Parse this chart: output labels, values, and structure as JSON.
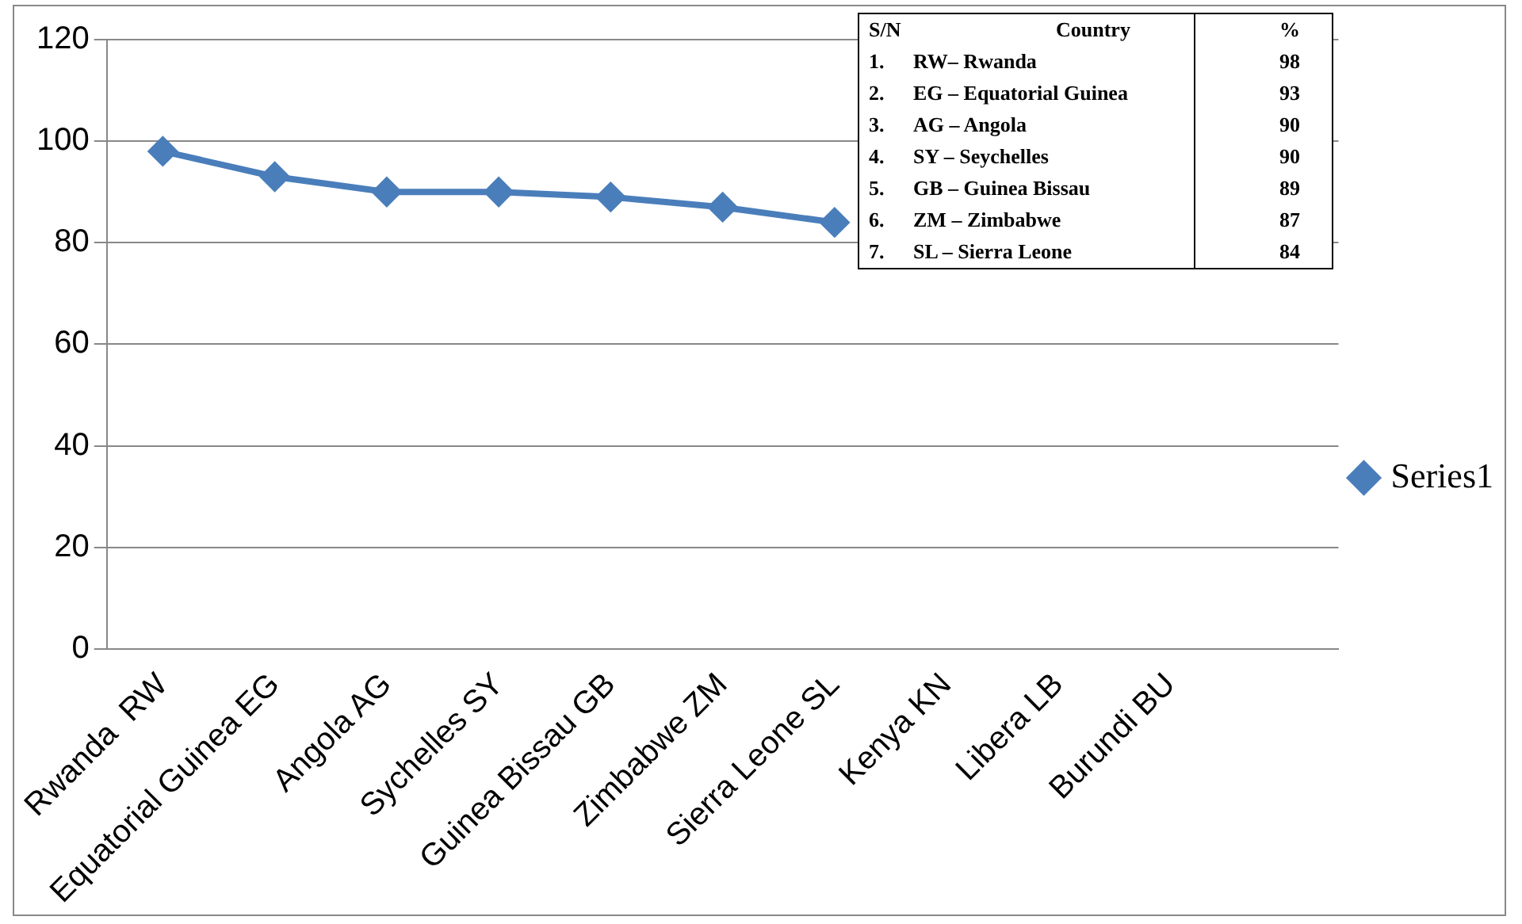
{
  "chart_data": {
    "type": "line",
    "categories": [
      "Rwanda  RW",
      "Equatorial Guinea EG",
      "Angola AG",
      "Sychelles SY",
      "Guinea Bissau GB",
      "Zimbabwe ZM",
      "Sierra Leone SL",
      "Kenya KN",
      "Libera LB",
      "Burundi BU",
      null
    ],
    "series": [
      {
        "name": "Series1",
        "color": "#4a7ebb",
        "values": [
          98,
          93,
          90,
          90,
          89,
          87,
          84,
          null,
          null,
          null,
          null
        ]
      }
    ],
    "ylim": [
      0,
      120
    ],
    "yticks": [
      0,
      20,
      40,
      60,
      80,
      100,
      120
    ],
    "grid": "y",
    "legend": "right",
    "marker": "diamond",
    "line_style": "solid",
    "annotations": [
      "S/N",
      "Country",
      "%",
      "1.",
      "RW– Rwanda",
      "98",
      "2.",
      "EG – Equatorial Guinea",
      "93",
      "3.",
      "AG – Angola",
      "90",
      "4.",
      "SY – Seychelles",
      "90",
      "5.",
      "GB – Guinea Bissau",
      "89",
      "6.",
      "ZM – Zimbabwe",
      "87",
      "7.",
      "SL – Sierra Leone",
      "84"
    ]
  }
}
